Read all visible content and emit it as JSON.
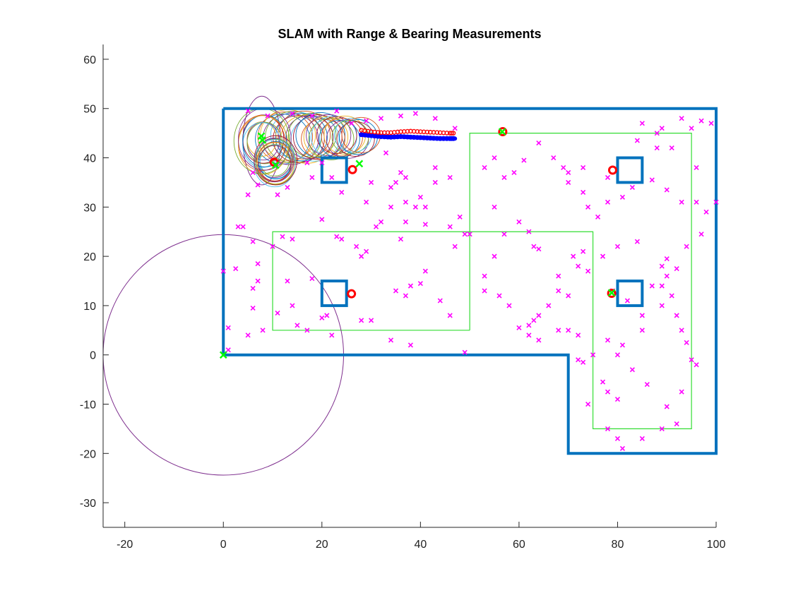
{
  "chart_data": {
    "type": "scatter",
    "title": "SLAM with Range & Bearing Measurements",
    "xlabel": "",
    "ylabel": "",
    "xlim": [
      -24.4,
      100
    ],
    "ylim": [
      -35,
      63
    ],
    "x_ticks": [
      -20,
      0,
      20,
      40,
      60,
      80,
      100
    ],
    "y_ticks": [
      -30,
      -20,
      -10,
      0,
      10,
      20,
      30,
      40,
      50,
      60
    ],
    "grid": false,
    "colors": {
      "walls": "#0072bd",
      "true_path": "#0000ff",
      "estimated_path": "#ff0000",
      "features": "#ff00ff",
      "landmarks": "#00ff00",
      "waypoint_route": "#33dd33",
      "covariance": "#7e2f8e",
      "axes": "#262626"
    },
    "walls_outline": [
      [
        0,
        50
      ],
      [
        100,
        50
      ],
      [
        100,
        -20
      ],
      [
        70,
        -20
      ],
      [
        70,
        0
      ],
      [
        0,
        0
      ],
      [
        0,
        50
      ]
    ],
    "pillars": [
      {
        "x1": 20,
        "y1": 35,
        "x2": 25,
        "y2": 40
      },
      {
        "x1": 80,
        "y1": 35,
        "x2": 85,
        "y2": 40
      },
      {
        "x1": 20,
        "y1": 10,
        "x2": 25,
        "y2": 15
      },
      {
        "x1": 80,
        "y1": 10,
        "x2": 85,
        "y2": 15
      }
    ],
    "route_polylines": [
      [
        [
          50,
          5
        ],
        [
          10,
          5
        ],
        [
          10,
          25
        ],
        [
          75,
          25
        ],
        [
          75,
          -15
        ],
        [
          95,
          -15
        ],
        [
          95,
          45
        ],
        [
          50,
          45
        ],
        [
          50,
          5
        ]
      ]
    ],
    "true_path": {
      "x": [
        28,
        30,
        32,
        34,
        36,
        38,
        40,
        42,
        44,
        46,
        47
      ],
      "y": [
        44.7,
        44.5,
        44.3,
        44.2,
        44.3,
        44.2,
        44.1,
        44.0,
        43.9,
        43.9,
        43.9
      ]
    },
    "estimated_path": {
      "x": [
        28,
        30,
        32,
        34,
        36,
        38,
        40,
        42,
        44,
        46,
        47
      ],
      "y": [
        45.6,
        45.3,
        45.1,
        45.1,
        45.3,
        45.4,
        45.3,
        45.2,
        45.1,
        45.0,
        45.0
      ]
    },
    "landmark_estimates": [
      {
        "x": 26.2,
        "y": 37.6
      },
      {
        "x": 79.0,
        "y": 37.5
      },
      {
        "x": 26.0,
        "y": 12.4
      },
      {
        "x": 78.8,
        "y": 12.5
      },
      {
        "x": 56.7,
        "y": 45.3
      },
      {
        "x": 10.3,
        "y": 39.1
      }
    ],
    "landmark_truth": [
      {
        "x": 0,
        "y": 0
      },
      {
        "x": 7.7,
        "y": 44.4
      },
      {
        "x": 7.9,
        "y": 43.6
      },
      {
        "x": 10.6,
        "y": 38.5
      },
      {
        "x": 27.6,
        "y": 38.8
      },
      {
        "x": 56.6,
        "y": 45.3
      },
      {
        "x": 78.8,
        "y": 12.6
      }
    ],
    "covariance_ellipses": [
      {
        "cx": 0,
        "cy": 0,
        "rx": 24.4,
        "ry": 24.4
      },
      {
        "cx": 7.8,
        "cy": 43.5,
        "rx": 3.8,
        "ry": 9.0
      },
      {
        "cx": 10.3,
        "cy": 40.0,
        "rx": 3.6,
        "ry": 4.0
      }
    ],
    "features": [
      [
        5,
        49.5
      ],
      [
        9,
        48.5
      ],
      [
        14,
        49
      ],
      [
        18,
        48.5
      ],
      [
        23,
        49.5
      ],
      [
        26,
        47
      ],
      [
        29,
        47.5
      ],
      [
        32,
        48
      ],
      [
        36,
        48.5
      ],
      [
        39,
        49
      ],
      [
        43,
        48
      ],
      [
        47,
        46
      ],
      [
        6,
        37
      ],
      [
        7,
        34.5
      ],
      [
        5,
        32.5
      ],
      [
        13,
        34
      ],
      [
        11,
        32.5
      ],
      [
        18,
        36
      ],
      [
        17,
        39
      ],
      [
        20,
        39
      ],
      [
        22,
        36
      ],
      [
        24,
        33
      ],
      [
        29,
        31
      ],
      [
        30,
        35
      ],
      [
        33,
        41
      ],
      [
        34,
        34
      ],
      [
        35,
        35
      ],
      [
        36,
        37
      ],
      [
        37,
        36
      ],
      [
        34,
        30
      ],
      [
        37,
        31
      ],
      [
        39,
        30
      ],
      [
        41,
        30
      ],
      [
        40,
        32
      ],
      [
        43,
        35
      ],
      [
        37,
        27
      ],
      [
        32,
        27
      ],
      [
        31,
        26
      ],
      [
        36,
        23.5
      ],
      [
        41,
        26.5
      ],
      [
        46,
        26
      ],
      [
        49,
        24.5
      ],
      [
        3,
        26
      ],
      [
        4,
        26
      ],
      [
        6,
        23
      ],
      [
        10,
        22
      ],
      [
        12,
        24
      ],
      [
        14,
        23.5
      ],
      [
        20,
        27.5
      ],
      [
        24,
        23.5
      ],
      [
        28,
        20
      ],
      [
        27,
        22
      ],
      [
        29,
        21
      ],
      [
        23,
        24
      ],
      [
        47,
        22
      ],
      [
        43,
        38
      ],
      [
        46,
        36
      ],
      [
        53,
        38
      ],
      [
        55,
        40
      ],
      [
        57,
        36
      ],
      [
        59,
        37
      ],
      [
        61,
        39.5
      ],
      [
        64,
        43
      ],
      [
        67,
        40
      ],
      [
        69,
        38
      ],
      [
        70,
        37
      ],
      [
        73,
        38
      ],
      [
        70,
        35
      ],
      [
        73,
        33
      ],
      [
        74,
        30
      ],
      [
        76,
        28
      ],
      [
        78,
        31
      ],
      [
        78,
        36
      ],
      [
        81,
        32
      ],
      [
        83,
        34
      ],
      [
        84,
        43.5
      ],
      [
        85,
        47
      ],
      [
        88,
        45
      ],
      [
        88,
        42
      ],
      [
        89,
        46
      ],
      [
        91,
        42
      ],
      [
        93,
        48
      ],
      [
        95,
        46
      ],
      [
        97,
        47.5
      ],
      [
        99,
        47
      ],
      [
        96,
        38
      ],
      [
        87,
        35.5
      ],
      [
        90,
        33.5
      ],
      [
        93,
        31
      ],
      [
        96,
        31
      ],
      [
        98,
        29
      ],
      [
        100,
        31
      ],
      [
        97,
        24.5
      ],
      [
        94,
        22
      ],
      [
        90,
        19.5
      ],
      [
        89,
        14
      ],
      [
        87,
        14
      ],
      [
        91,
        12
      ],
      [
        92,
        8
      ],
      [
        93,
        5
      ],
      [
        94,
        2.5
      ],
      [
        96,
        -2
      ],
      [
        95,
        -1
      ],
      [
        93,
        -7.5
      ],
      [
        90,
        -10.5
      ],
      [
        92,
        -14
      ],
      [
        89,
        -15
      ],
      [
        85,
        -17
      ],
      [
        81,
        -19
      ],
      [
        80,
        -17
      ],
      [
        78,
        -15
      ],
      [
        80,
        -9
      ],
      [
        78,
        -7.5
      ],
      [
        77,
        -5.5
      ],
      [
        78,
        3
      ],
      [
        80,
        0
      ],
      [
        83,
        -3
      ],
      [
        86,
        -6
      ],
      [
        85,
        5
      ],
      [
        81,
        2
      ],
      [
        79,
        13
      ],
      [
        82,
        11
      ],
      [
        85,
        8
      ],
      [
        89,
        10
      ],
      [
        89,
        18
      ],
      [
        90,
        16
      ],
      [
        92,
        17.5
      ],
      [
        84,
        23
      ],
      [
        80,
        22
      ],
      [
        77,
        20
      ],
      [
        74,
        17
      ],
      [
        73,
        21
      ],
      [
        72,
        18
      ],
      [
        71,
        20
      ],
      [
        68,
        16
      ],
      [
        68,
        13
      ],
      [
        66,
        10
      ],
      [
        64,
        8
      ],
      [
        62,
        6
      ],
      [
        60,
        5.5
      ],
      [
        62,
        4
      ],
      [
        64,
        3
      ],
      [
        63,
        7
      ],
      [
        58,
        10
      ],
      [
        56,
        12
      ],
      [
        53,
        13
      ],
      [
        53,
        16
      ],
      [
        55,
        20
      ],
      [
        57,
        24.5
      ],
      [
        60,
        27
      ],
      [
        62,
        25
      ],
      [
        63,
        22
      ],
      [
        64,
        21.5
      ],
      [
        55,
        30
      ],
      [
        50,
        24.5
      ],
      [
        48,
        28
      ],
      [
        0,
        17
      ],
      [
        1,
        1
      ],
      [
        1,
        5.5
      ],
      [
        2.5,
        17.5
      ],
      [
        5,
        4
      ],
      [
        6,
        13.5
      ],
      [
        6,
        9.5
      ],
      [
        7,
        18.5
      ],
      [
        7,
        15
      ],
      [
        8,
        5
      ],
      [
        11,
        8.5
      ],
      [
        13,
        15
      ],
      [
        14,
        10
      ],
      [
        15,
        6
      ],
      [
        17,
        5
      ],
      [
        18,
        15.5
      ],
      [
        20,
        7.5
      ],
      [
        21,
        8
      ],
      [
        22,
        4
      ],
      [
        28,
        7
      ],
      [
        30,
        7
      ],
      [
        34,
        3
      ],
      [
        38,
        2
      ],
      [
        40,
        14.5
      ],
      [
        41,
        17
      ],
      [
        44,
        11
      ],
      [
        46,
        8
      ],
      [
        49,
        0.5
      ],
      [
        38,
        14
      ],
      [
        35,
        13
      ],
      [
        37,
        12
      ],
      [
        70,
        12
      ],
      [
        72,
        -1
      ],
      [
        74,
        -10
      ],
      [
        73,
        -1.5
      ],
      [
        75,
        0
      ],
      [
        72,
        4
      ],
      [
        70,
        5
      ],
      [
        68,
        5
      ]
    ]
  }
}
